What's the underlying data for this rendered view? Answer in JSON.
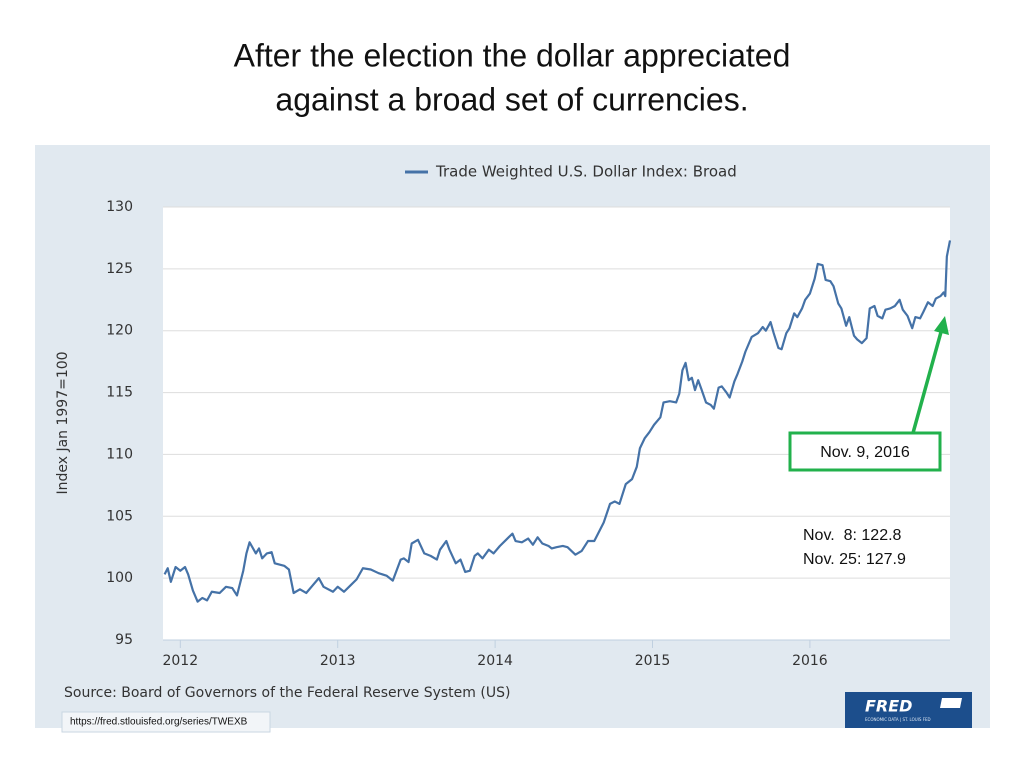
{
  "slide_title": [
    "After the election the dollar appreciated",
    "against a broad set of currencies."
  ],
  "chart_data": {
    "type": "line",
    "ylabel": "Index Jan 1997=100",
    "xlim": [
      2011.89,
      2016.89
    ],
    "xticks": [
      2012,
      2013,
      2014,
      2015,
      2016
    ],
    "ylim": [
      95,
      130
    ],
    "yticks": [
      95,
      100,
      105,
      110,
      115,
      120,
      125,
      130
    ],
    "grid": true,
    "legend": "top",
    "x": [
      2011.9,
      2011.92,
      2011.94,
      2011.97,
      2012.0,
      2012.03,
      2012.05,
      2012.08,
      2012.11,
      2012.14,
      2012.17,
      2012.2,
      2012.25,
      2012.29,
      2012.33,
      2012.36,
      2012.4,
      2012.42,
      2012.44,
      2012.48,
      2012.5,
      2012.52,
      2012.55,
      2012.58,
      2012.6,
      2012.66,
      2012.69,
      2012.72,
      2012.76,
      2012.8,
      2012.84,
      2012.88,
      2012.91,
      2012.97,
      2013.0,
      2013.04,
      2013.08,
      2013.12,
      2013.16,
      2013.21,
      2013.26,
      2013.31,
      2013.35,
      2013.4,
      2013.42,
      2013.45,
      2013.47,
      2013.51,
      2013.55,
      2013.59,
      2013.63,
      2013.65,
      2013.69,
      2013.71,
      2013.75,
      2013.78,
      2013.81,
      2013.84,
      2013.87,
      2013.89,
      2013.92,
      2013.96,
      2013.99,
      2014.03,
      2014.07,
      2014.11,
      2014.13,
      2014.17,
      2014.21,
      2014.24,
      2014.27,
      2014.3,
      2014.34,
      2014.36,
      2014.39,
      2014.43,
      2014.46,
      2014.51,
      2014.55,
      2014.59,
      2014.63,
      2014.65,
      2014.69,
      2014.73,
      2014.76,
      2014.79,
      2014.83,
      2014.87,
      2014.9,
      2014.92,
      2014.95,
      2014.98,
      2015.01,
      2015.05,
      2015.07,
      2015.11,
      2015.15,
      2015.17,
      2015.19,
      2015.21,
      2015.23,
      2015.25,
      2015.27,
      2015.29,
      2015.31,
      2015.34,
      2015.37,
      2015.39,
      2015.42,
      2015.44,
      2015.47,
      2015.49,
      2015.52,
      2015.54,
      2015.57,
      2015.59,
      2015.63,
      2015.67,
      2015.7,
      2015.72,
      2015.75,
      2015.77,
      2015.8,
      2015.82,
      2015.85,
      2015.87,
      2015.9,
      2015.92,
      2015.95,
      2015.97,
      2016.0,
      2016.03,
      2016.05,
      2016.08,
      2016.1,
      2016.13,
      2016.15,
      2016.18,
      2016.2,
      2016.23,
      2016.25,
      2016.28,
      2016.3,
      2016.33,
      2016.36,
      2016.38,
      2016.41,
      2016.43,
      2016.46,
      2016.48,
      2016.51,
      2016.54,
      2016.57,
      2016.59,
      2016.62,
      2016.65,
      2016.67,
      2016.7,
      2016.72,
      2016.75,
      2016.78,
      2016.8,
      2016.83,
      2016.85,
      2016.86,
      2016.87,
      2016.89
    ],
    "series": [
      {
        "name": "Trade Weighted U.S. Dollar Index: Broad",
        "color": "#4572a7",
        "values": [
          100.3,
          100.8,
          99.7,
          100.9,
          100.6,
          100.9,
          100.3,
          99.0,
          98.1,
          98.4,
          98.2,
          98.9,
          98.8,
          99.3,
          99.2,
          98.6,
          100.6,
          102.0,
          102.9,
          102.0,
          102.4,
          101.6,
          102.0,
          102.1,
          101.2,
          101.0,
          100.7,
          98.8,
          99.1,
          98.8,
          99.4,
          100.0,
          99.3,
          98.9,
          99.3,
          98.9,
          99.4,
          99.9,
          100.8,
          100.7,
          100.4,
          100.2,
          99.8,
          101.5,
          101.6,
          101.3,
          102.8,
          103.1,
          102.0,
          101.8,
          101.5,
          102.3,
          103.0,
          102.3,
          101.2,
          101.5,
          100.5,
          100.6,
          101.8,
          102.0,
          101.6,
          102.3,
          102.0,
          102.6,
          103.1,
          103.6,
          103.0,
          102.9,
          103.2,
          102.7,
          103.3,
          102.8,
          102.6,
          102.4,
          102.5,
          102.6,
          102.5,
          101.9,
          102.2,
          103.0,
          103.0,
          103.5,
          104.5,
          106.0,
          106.2,
          106.0,
          107.6,
          108.0,
          109.0,
          110.5,
          111.3,
          111.8,
          112.4,
          113.0,
          114.2,
          114.3,
          114.2,
          114.9,
          116.8,
          117.4,
          116.0,
          116.2,
          115.2,
          116.0,
          115.3,
          114.2,
          114.0,
          113.7,
          115.4,
          115.5,
          115.0,
          114.6,
          115.9,
          116.5,
          117.5,
          118.3,
          119.5,
          119.8,
          120.3,
          120.0,
          120.7,
          119.8,
          118.6,
          118.5,
          119.8,
          120.2,
          121.4,
          121.1,
          121.8,
          122.5,
          123.0,
          124.2,
          125.4,
          125.3,
          124.1,
          124.0,
          123.6,
          122.2,
          121.8,
          120.4,
          121.1,
          119.6,
          119.3,
          119.0,
          119.4,
          121.8,
          122.0,
          121.2,
          121.0,
          121.7,
          121.8,
          122.0,
          122.5,
          121.7,
          121.2,
          120.2,
          121.1,
          121.0,
          121.5,
          122.3,
          122.0,
          122.6,
          122.8,
          123.1,
          122.8,
          126.0,
          127.3
        ]
      }
    ],
    "annotations": [
      "Nov. 9, 2016",
      "Nov.  8: 122.8",
      "Nov. 25: 127.9"
    ],
    "annotation_color": "#22b14c",
    "source": "Source: Board of Governors of the Federal Reserve System (US)",
    "url": "https://fred.stlouisfed.org/series/TWEXB",
    "logo": "FRED",
    "logo_subtext": "ECONOMIC DATA | ST. LOUIS FED"
  }
}
